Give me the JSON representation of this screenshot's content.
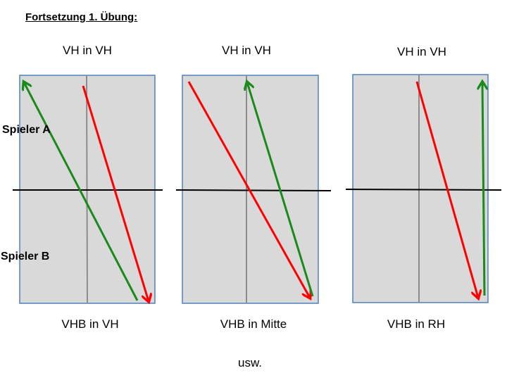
{
  "heading": "Fortsetzung 1. Übung:",
  "players": {
    "a": "Spieler A",
    "b": "Spieler B"
  },
  "colors": {
    "court_fill": "#d9d9d9",
    "court_border": "#4f81bd",
    "red_arrow": "#ff0000",
    "green_arrow": "#1a8a1a"
  },
  "panels": [
    {
      "top_label": "VH in VH",
      "bottom_label": "VHB in VH"
    },
    {
      "top_label": "VH in VH",
      "bottom_label": "VHB in Mitte"
    },
    {
      "top_label": "VH in VH",
      "bottom_label": "VHB in RH"
    }
  ],
  "footer": "usw."
}
